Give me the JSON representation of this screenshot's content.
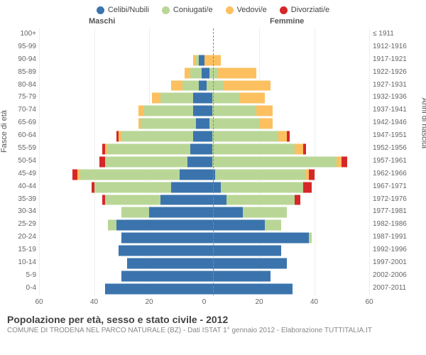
{
  "chart": {
    "type": "population-pyramid-stacked",
    "legend": [
      {
        "label": "Celibi/Nubili",
        "color": "#3b74ad"
      },
      {
        "label": "Coniugati/e",
        "color": "#b9d696"
      },
      {
        "label": "Vedovi/e",
        "color": "#fcc060"
      },
      {
        "label": "Divorziati/e",
        "color": "#d62728"
      }
    ],
    "left_header": "Maschi",
    "right_header": "Femmine",
    "y_left_title": "Fasce di età",
    "y_right_title": "Anni di nascita",
    "x_max": 60,
    "x_ticks_left": [
      60,
      40,
      20,
      0
    ],
    "x_ticks_right": [
      20,
      40,
      60
    ],
    "colors": {
      "single": "#3b74ad",
      "married": "#b9d696",
      "widowed": "#fcc060",
      "divorced": "#d62728",
      "grid": "#eeeeee",
      "centerline": "#888888",
      "background": "#ffffff",
      "text": "#555555"
    },
    "rows": [
      {
        "age": "100+",
        "birth": "≤ 1911",
        "m": {
          "s": 0,
          "c": 0,
          "w": 0,
          "d": 0
        },
        "f": {
          "s": 0,
          "c": 0,
          "w": 0,
          "d": 0
        }
      },
      {
        "age": "95-99",
        "birth": "1912-1916",
        "m": {
          "s": 0,
          "c": 0,
          "w": 0,
          "d": 0
        },
        "f": {
          "s": 0,
          "c": 0,
          "w": 0,
          "d": 0
        }
      },
      {
        "age": "90-94",
        "birth": "1917-1921",
        "m": {
          "s": 2,
          "c": 1,
          "w": 1,
          "d": 0
        },
        "f": {
          "s": 0,
          "c": 0,
          "w": 6,
          "d": 0
        }
      },
      {
        "age": "85-89",
        "birth": "1922-1926",
        "m": {
          "s": 1,
          "c": 4,
          "w": 2,
          "d": 0
        },
        "f": {
          "s": 2,
          "c": 3,
          "w": 14,
          "d": 0
        }
      },
      {
        "age": "80-84",
        "birth": "1927-1931",
        "m": {
          "s": 2,
          "c": 6,
          "w": 4,
          "d": 0
        },
        "f": {
          "s": 1,
          "c": 6,
          "w": 17,
          "d": 0
        }
      },
      {
        "age": "75-79",
        "birth": "1932-1936",
        "m": {
          "s": 4,
          "c": 12,
          "w": 3,
          "d": 0
        },
        "f": {
          "s": 3,
          "c": 10,
          "w": 9,
          "d": 0
        }
      },
      {
        "age": "70-74",
        "birth": "1937-1941",
        "m": {
          "s": 4,
          "c": 18,
          "w": 2,
          "d": 0
        },
        "f": {
          "s": 3,
          "c": 16,
          "w": 6,
          "d": 0
        }
      },
      {
        "age": "65-69",
        "birth": "1942-1946",
        "m": {
          "s": 3,
          "c": 20,
          "w": 1,
          "d": 0
        },
        "f": {
          "s": 2,
          "c": 18,
          "w": 5,
          "d": 0
        }
      },
      {
        "age": "60-64",
        "birth": "1947-1951",
        "m": {
          "s": 4,
          "c": 26,
          "w": 1,
          "d": 1
        },
        "f": {
          "s": 3,
          "c": 24,
          "w": 3,
          "d": 1
        }
      },
      {
        "age": "55-59",
        "birth": "1952-1956",
        "m": {
          "s": 5,
          "c": 30,
          "w": 1,
          "d": 1
        },
        "f": {
          "s": 3,
          "c": 30,
          "w": 3,
          "d": 1
        }
      },
      {
        "age": "50-54",
        "birth": "1957-1961",
        "m": {
          "s": 6,
          "c": 30,
          "w": 0,
          "d": 2
        },
        "f": {
          "s": 3,
          "c": 45,
          "w": 2,
          "d": 2
        }
      },
      {
        "age": "45-49",
        "birth": "1962-1966",
        "m": {
          "s": 9,
          "c": 36,
          "w": 1,
          "d": 2
        },
        "f": {
          "s": 4,
          "c": 33,
          "w": 1,
          "d": 2
        }
      },
      {
        "age": "40-44",
        "birth": "1967-1971",
        "m": {
          "s": 12,
          "c": 28,
          "w": 0,
          "d": 1
        },
        "f": {
          "s": 6,
          "c": 30,
          "w": 0,
          "d": 3
        }
      },
      {
        "age": "35-39",
        "birth": "1972-1976",
        "m": {
          "s": 16,
          "c": 20,
          "w": 0,
          "d": 1
        },
        "f": {
          "s": 8,
          "c": 25,
          "w": 0,
          "d": 2
        }
      },
      {
        "age": "30-34",
        "birth": "1977-1981",
        "m": {
          "s": 20,
          "c": 10,
          "w": 0,
          "d": 0
        },
        "f": {
          "s": 14,
          "c": 16,
          "w": 0,
          "d": 0
        }
      },
      {
        "age": "25-29",
        "birth": "1982-1986",
        "m": {
          "s": 32,
          "c": 3,
          "w": 0,
          "d": 0
        },
        "f": {
          "s": 22,
          "c": 6,
          "w": 0,
          "d": 0
        }
      },
      {
        "age": "20-24",
        "birth": "1987-1991",
        "m": {
          "s": 30,
          "c": 0,
          "w": 0,
          "d": 0
        },
        "f": {
          "s": 38,
          "c": 1,
          "w": 0,
          "d": 0
        }
      },
      {
        "age": "15-19",
        "birth": "1992-1996",
        "m": {
          "s": 31,
          "c": 0,
          "w": 0,
          "d": 0
        },
        "f": {
          "s": 28,
          "c": 0,
          "w": 0,
          "d": 0
        }
      },
      {
        "age": "10-14",
        "birth": "1997-2001",
        "m": {
          "s": 28,
          "c": 0,
          "w": 0,
          "d": 0
        },
        "f": {
          "s": 30,
          "c": 0,
          "w": 0,
          "d": 0
        }
      },
      {
        "age": "5-9",
        "birth": "2002-2006",
        "m": {
          "s": 30,
          "c": 0,
          "w": 0,
          "d": 0
        },
        "f": {
          "s": 24,
          "c": 0,
          "w": 0,
          "d": 0
        }
      },
      {
        "age": "0-4",
        "birth": "2007-2011",
        "m": {
          "s": 36,
          "c": 0,
          "w": 0,
          "d": 0
        },
        "f": {
          "s": 32,
          "c": 0,
          "w": 0,
          "d": 0
        }
      }
    ],
    "title": "Popolazione per età, sesso e stato civile - 2012",
    "subtitle": "COMUNE DI TRODENA NEL PARCO NATURALE (BZ) - Dati ISTAT 1° gennaio 2012 - Elaborazione TUTTITALIA.IT"
  }
}
